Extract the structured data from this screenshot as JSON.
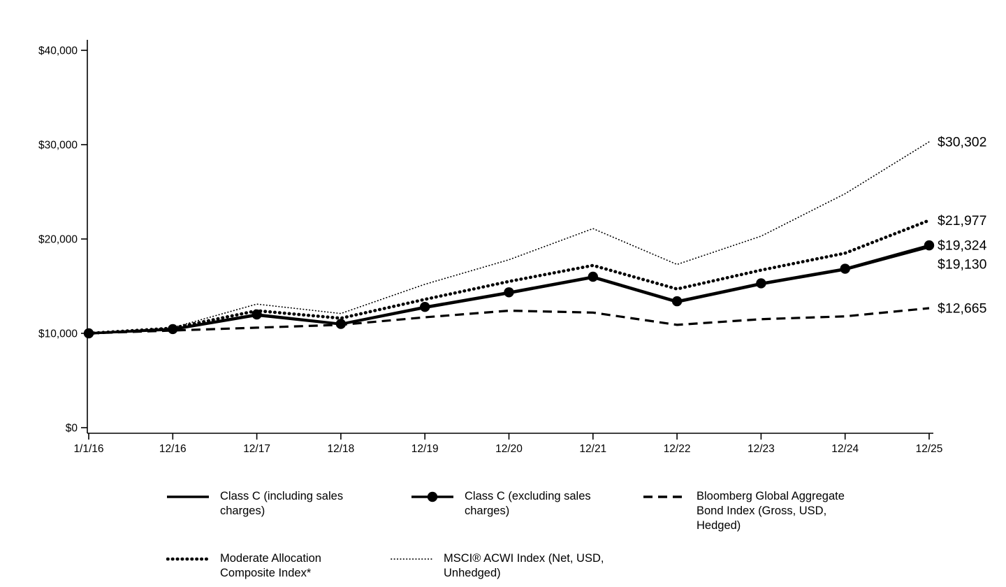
{
  "chart_data": {
    "type": "line",
    "x_axis": {
      "labels": [
        "1/1/16",
        "12/16",
        "12/17",
        "12/18",
        "12/19",
        "12/20",
        "12/21",
        "12/22",
        "12/23",
        "12/24",
        "12/25"
      ]
    },
    "y_axis": {
      "max": 40000,
      "ticks": [
        {
          "label": "$0",
          "value": 0
        },
        {
          "label": "$10,000",
          "value": 10000
        },
        {
          "label": "$20,000",
          "value": 20000
        },
        {
          "label": "$30,000",
          "value": 30000
        },
        {
          "label": "$40,000",
          "value": 40000
        }
      ]
    },
    "ylim": [
      0,
      40000
    ],
    "grid": false,
    "legend_position": "bottom",
    "series": [
      {
        "name": "Class C (including sales charges)",
        "style": "solid",
        "end_label": "$19,130",
        "values": [
          10000,
          10400,
          11900,
          10950,
          12700,
          14250,
          15900,
          13300,
          15200,
          16750,
          19130
        ]
      },
      {
        "name": "Class C (excluding sales charges)",
        "style": "solid-marker",
        "end_label": "$19,324",
        "values": [
          10000,
          10450,
          12000,
          11000,
          12800,
          14350,
          16000,
          13400,
          15300,
          16850,
          19324
        ]
      },
      {
        "name": "Bloomberg Global Aggregate Bond Index (Gross, USD, Hedged)",
        "style": "dashed",
        "end_label": "$12,665",
        "values": [
          10000,
          10300,
          10600,
          10900,
          11700,
          12400,
          12200,
          10900,
          11500,
          11800,
          12665
        ]
      },
      {
        "name": "Moderate Allocation Composite Index*",
        "style": "dotted-thick",
        "end_label": "$21,977",
        "values": [
          10000,
          10550,
          12400,
          11600,
          13600,
          15500,
          17200,
          14700,
          16700,
          18500,
          21977
        ]
      },
      {
        "name": "MSCI® ACWI Index (Net, USD, Unhedged)",
        "style": "dotted-fine",
        "end_label": "$30,302",
        "values": [
          10000,
          10600,
          13100,
          12100,
          15200,
          17800,
          21100,
          17300,
          20300,
          24800,
          30302
        ]
      }
    ]
  }
}
